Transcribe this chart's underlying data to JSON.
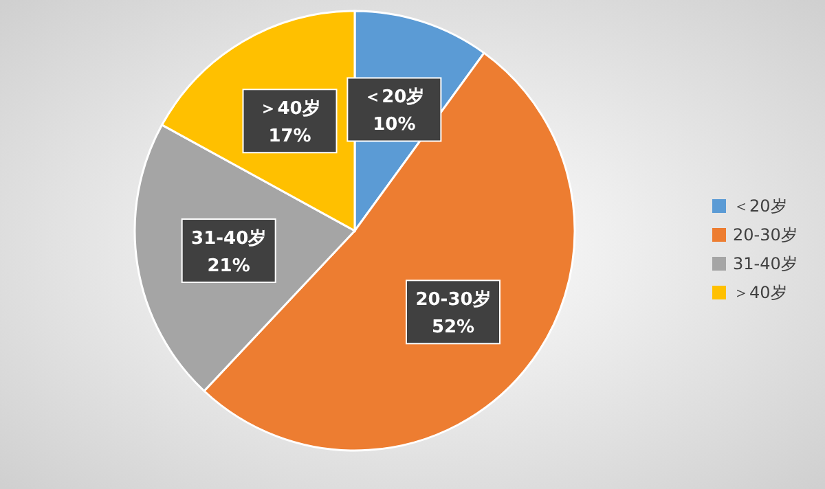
{
  "chart_data": {
    "type": "pie",
    "categories": [
      "＜20岁",
      "20-30岁",
      "31-40岁",
      "＞40岁"
    ],
    "values": [
      10,
      52,
      21,
      17
    ],
    "colors": [
      "#5b9bd5",
      "#ed7d31",
      "#a5a5a5",
      "#ffc000"
    ],
    "value_labels": [
      "10%",
      "52%",
      "21%",
      "17%"
    ],
    "legend": "right"
  }
}
